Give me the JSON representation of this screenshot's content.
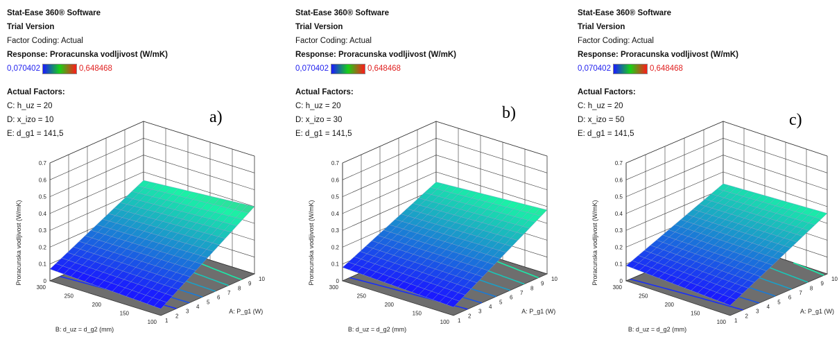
{
  "chart_data": [
    {
      "type": "surface",
      "panel_label": "a)",
      "software": "Stat-Ease 360® Software",
      "version": "Trial Version",
      "coding": "Factor Coding: Actual",
      "response": "Response: Proracunska vodljivost (W/mK)",
      "range_low": "0,070402",
      "range_high": "0,648468",
      "factors_title": "Actual Factors:",
      "factors": [
        "C: h_uz = 20",
        "D: x_izo = 10",
        "E: d_g1 = 141,5"
      ],
      "zlabel": "Proracunska vodljivost (W/mK)",
      "zticks": [
        "0",
        "0.1",
        "0.2",
        "0.3",
        "0.4",
        "0.5",
        "0.6",
        "0.7"
      ],
      "zlim": [
        0,
        0.7
      ],
      "xlabel": "A: P_g1 (W)",
      "xticks": [
        "1",
        "2",
        "3",
        "4",
        "5",
        "6",
        "7",
        "8",
        "9",
        "10"
      ],
      "xlim": [
        1,
        10
      ],
      "ylabel": "B: d_uz = d_g2 (mm)",
      "yticks": [
        "100",
        "150",
        "200",
        "250",
        "300"
      ],
      "ylim": [
        100,
        300
      ],
      "surface_corners": {
        "A1_B300": 0.07,
        "A10_B300": 0.35,
        "A1_B100": 0.04,
        "A10_B100": 0.4
      }
    },
    {
      "type": "surface",
      "panel_label": "b)",
      "software": "Stat-Ease 360® Software",
      "version": "Trial Version",
      "coding": "Factor Coding: Actual",
      "response": "Response: Proracunska vodljivost (W/mK)",
      "range_low": "0,070402",
      "range_high": "0,648468",
      "factors_title": "Actual Factors:",
      "factors": [
        "C: h_uz = 20",
        "D: x_izo = 30",
        "E: d_g1 = 141,5"
      ],
      "zlabel": "Proracunska vodljivost (W/mK)",
      "zticks": [
        "0",
        "0.1",
        "0.2",
        "0.3",
        "0.4",
        "0.5",
        "0.6",
        "0.7"
      ],
      "zlim": [
        0,
        0.7
      ],
      "xlabel": "A: P_g1 (W)",
      "xticks": [
        "1",
        "2",
        "3",
        "4",
        "5",
        "6",
        "7",
        "8",
        "9",
        "10"
      ],
      "xlim": [
        1,
        10
      ],
      "ylabel": "B: d_uz = d_g2 (mm)",
      "yticks": [
        "100",
        "150",
        "200",
        "250",
        "300"
      ],
      "ylim": [
        100,
        300
      ],
      "surface_corners": {
        "A1_B300": 0.08,
        "A10_B300": 0.34,
        "A1_B100": 0.05,
        "A10_B100": 0.38
      }
    },
    {
      "type": "surface",
      "panel_label": "c)",
      "software": "Stat-Ease 360® Software",
      "version": "Trial Version",
      "coding": "Factor Coding: Actual",
      "response": "Response: Proracunska vodljivost (W/mK)",
      "range_low": "0,070402",
      "range_high": "0,648468",
      "factors_title": "Actual Factors:",
      "factors": [
        "C: h_uz = 20",
        "D: x_izo = 50",
        "E: d_g1 = 141,5"
      ],
      "zlabel": "Proracunska vodljivost (W/mK)",
      "zticks": [
        "0",
        "0.1",
        "0.2",
        "0.3",
        "0.4",
        "0.5",
        "0.6",
        "0.7"
      ],
      "zlim": [
        0,
        0.7
      ],
      "xlabel": "A: P_g1 (W)",
      "xticks": [
        "1",
        "2",
        "3",
        "4",
        "5",
        "6",
        "7",
        "8",
        "9",
        "10"
      ],
      "xlim": [
        1,
        10
      ],
      "ylabel": "B: d_uz = d_g2 (mm)",
      "yticks": [
        "100",
        "150",
        "200",
        "250",
        "300"
      ],
      "ylim": [
        100,
        300
      ],
      "surface_corners": {
        "A1_B300": 0.09,
        "A10_B300": 0.33,
        "A1_B100": 0.06,
        "A10_B100": 0.36
      }
    }
  ],
  "colors": {
    "low": "#1a1aff",
    "mid": "#18d018",
    "high": "#ff1a1a",
    "floor": "#6e6e6e",
    "grid": "#333333"
  }
}
